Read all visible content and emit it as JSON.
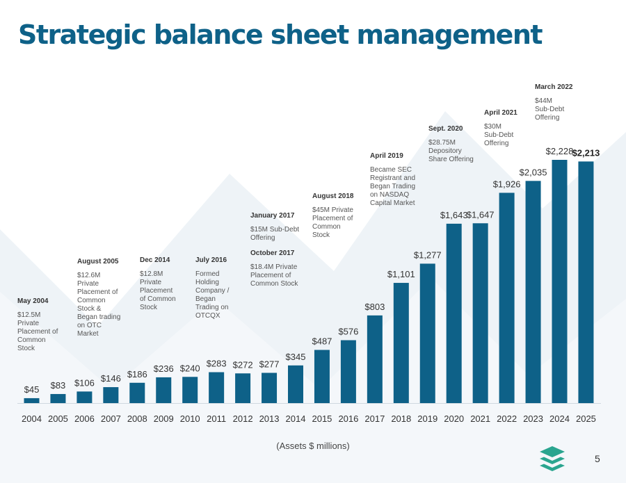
{
  "title": "Strategic balance sheet management",
  "caption": "(Assets $ millions)",
  "page_number": "5",
  "colors": {
    "bar": "#0e6188",
    "title": "#0e6188",
    "logo": "#2aa58f"
  },
  "annotations": [
    {
      "heading": "May 2004",
      "lines": [
        "$12.5M",
        "Private",
        "Placement of",
        "Common",
        "Stock"
      ]
    },
    {
      "heading": "August 2005",
      "lines": [
        "$12.6M",
        "Private",
        "Placement of",
        "Common",
        "Stock &",
        "Began trading",
        "on OTC",
        "Market"
      ]
    },
    {
      "heading": "Dec 2014",
      "lines": [
        "$12.8M",
        "Private",
        "Placement",
        "of Common",
        "Stock"
      ]
    },
    {
      "heading": "July 2016",
      "lines": [
        "Formed",
        "Holding",
        "Company /",
        "Began",
        "Trading on",
        "OTCQX"
      ]
    },
    {
      "heading": "January 2017",
      "lines": [
        "$15M Sub-Debt",
        "Offering"
      ],
      "heading2": "October 2017",
      "lines2": [
        "$18.4M Private",
        "Placement of",
        "Common Stock"
      ]
    },
    {
      "heading": "August 2018",
      "lines": [
        "$45M Private",
        "Placement of",
        "Common",
        "Stock"
      ]
    },
    {
      "heading": "April 2019",
      "lines": [
        "Became SEC",
        "Registrant and",
        "Began Trading",
        "on NASDAQ",
        "Capital Market"
      ]
    },
    {
      "heading": "Sept. 2020",
      "lines": [
        "$28.75M",
        "Depository",
        "Share Offering"
      ]
    },
    {
      "heading": "April 2021",
      "lines": [
        "$30M",
        "Sub-Debt",
        "Offering"
      ]
    },
    {
      "heading": "March 2022",
      "lines": [
        "$44M",
        "Sub-Debt",
        "Offering"
      ]
    }
  ],
  "chart_data": {
    "type": "bar",
    "categories": [
      "2004",
      "2005",
      "2006",
      "2007",
      "2008",
      "2009",
      "2010",
      "2011",
      "2012",
      "2013",
      "2014",
      "2015",
      "2016",
      "2017",
      "2018",
      "2019",
      "2020",
      "2021",
      "2022",
      "2023",
      "2024",
      "2025"
    ],
    "values": [
      45,
      83,
      106,
      146,
      186,
      236,
      240,
      283,
      272,
      277,
      345,
      487,
      576,
      803,
      1101,
      1277,
      1643,
      1647,
      1926,
      2035,
      2228,
      2213
    ],
    "data_labels": [
      "$45",
      "$83",
      "$106",
      "$146",
      "$186",
      "$236",
      "$240",
      "$283",
      "$272",
      "$277",
      "$345",
      "$487",
      "$576",
      "$803",
      "$1,101",
      "$1,277",
      "$1,643",
      "$1,647",
      "$1,926",
      "$2,035",
      "$2,228",
      "$2,213"
    ],
    "xlabel": "(Assets $ millions)",
    "ylabel": "",
    "ylim": [
      0,
      2228
    ],
    "grid": false,
    "legend": "none"
  }
}
